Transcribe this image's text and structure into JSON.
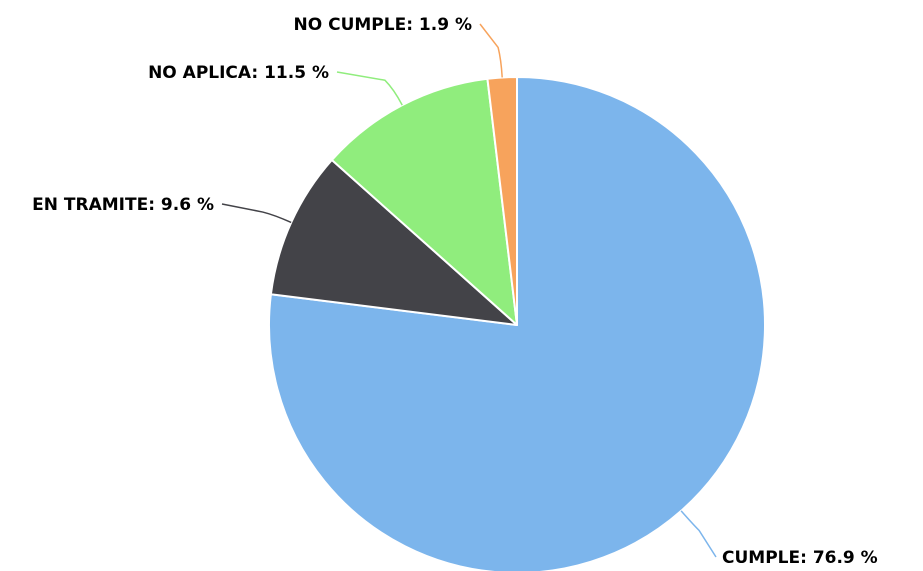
{
  "chart_data": {
    "type": "pie",
    "title": "",
    "legend": "none",
    "slices": [
      {
        "label": "CUMPLE",
        "value": 76.9,
        "display": "CUMPLE: 76.9 %",
        "color": "#7cb5ec"
      },
      {
        "label": "EN TRAMITE",
        "value": 9.6,
        "display": "EN TRAMITE: 9.6 %",
        "color": "#434348"
      },
      {
        "label": "NO APLICA",
        "value": 11.5,
        "display": "NO APLICA: 11.5 %",
        "color": "#90ed7d"
      },
      {
        "label": "NO CUMPLE",
        "value": 1.9,
        "display": "NO CUMPLE: 1.9 %",
        "color": "#f7a35c"
      }
    ],
    "start_angle_deg": 0,
    "direction": "clockwise"
  }
}
